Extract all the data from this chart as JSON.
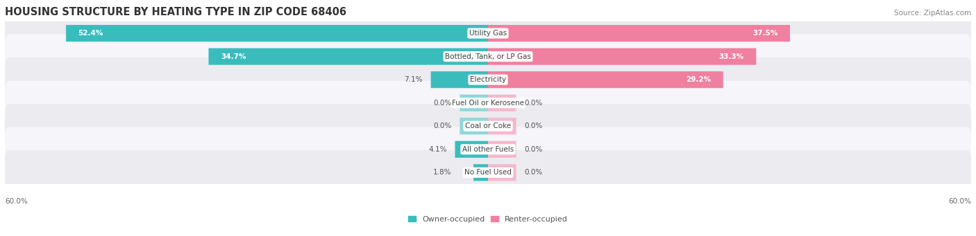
{
  "title": "HOUSING STRUCTURE BY HEATING TYPE IN ZIP CODE 68406",
  "source": "Source: ZipAtlas.com",
  "categories": [
    "Utility Gas",
    "Bottled, Tank, or LP Gas",
    "Electricity",
    "Fuel Oil or Kerosene",
    "Coal or Coke",
    "All other Fuels",
    "No Fuel Used"
  ],
  "owner_values": [
    52.4,
    34.7,
    7.1,
    0.0,
    0.0,
    4.1,
    1.8
  ],
  "renter_values": [
    37.5,
    33.3,
    29.2,
    0.0,
    0.0,
    0.0,
    0.0
  ],
  "owner_color": "#3BBCBC",
  "renter_color": "#F080A0",
  "renter_zero_color": "#F5B8CC",
  "row_bg_color": "#EBEBF0",
  "row_bg_light": "#F5F5FA",
  "max_val": 60.0,
  "axis_label_left": "60.0%",
  "axis_label_right": "60.0%",
  "title_fontsize": 10.5,
  "source_fontsize": 7.5,
  "value_fontsize": 7.5,
  "category_fontsize": 7.5,
  "legend_fontsize": 8
}
